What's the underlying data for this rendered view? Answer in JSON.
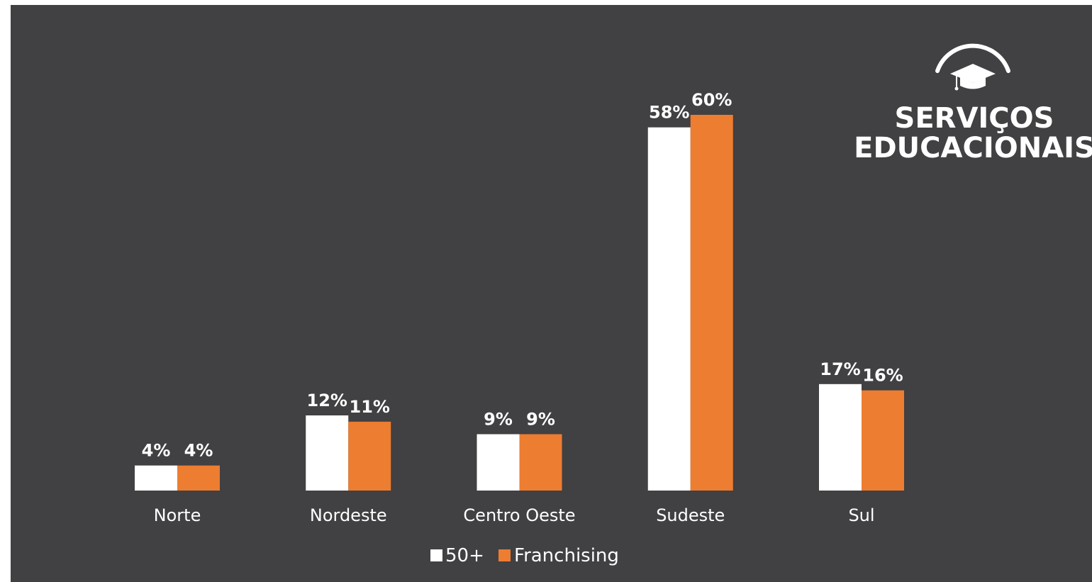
{
  "logo": {
    "line1": "SERVIÇOS",
    "line2": "EDUCACIONAIS",
    "icon": "graduation-cap-icon"
  },
  "colors": {
    "background": "#414042",
    "series_50plus": "#ffffff",
    "series_franchising": "#ed7d31",
    "text": "#ffffff"
  },
  "chart_data": {
    "type": "bar",
    "categories": [
      "Norte",
      "Nordeste",
      "Centro Oeste",
      "Sudeste",
      "Sul"
    ],
    "series": [
      {
        "name": "50+",
        "values": [
          4,
          12,
          9,
          58,
          17
        ],
        "labels": [
          "4%",
          "12%",
          "9%",
          "58%",
          "17%"
        ]
      },
      {
        "name": "Franchising",
        "values": [
          4,
          11,
          9,
          60,
          16
        ],
        "labels": [
          "4%",
          "11%",
          "9%",
          "60%",
          "16%"
        ]
      }
    ],
    "ylim": [
      0,
      60
    ],
    "grid": false,
    "legend": "bottom-center"
  }
}
